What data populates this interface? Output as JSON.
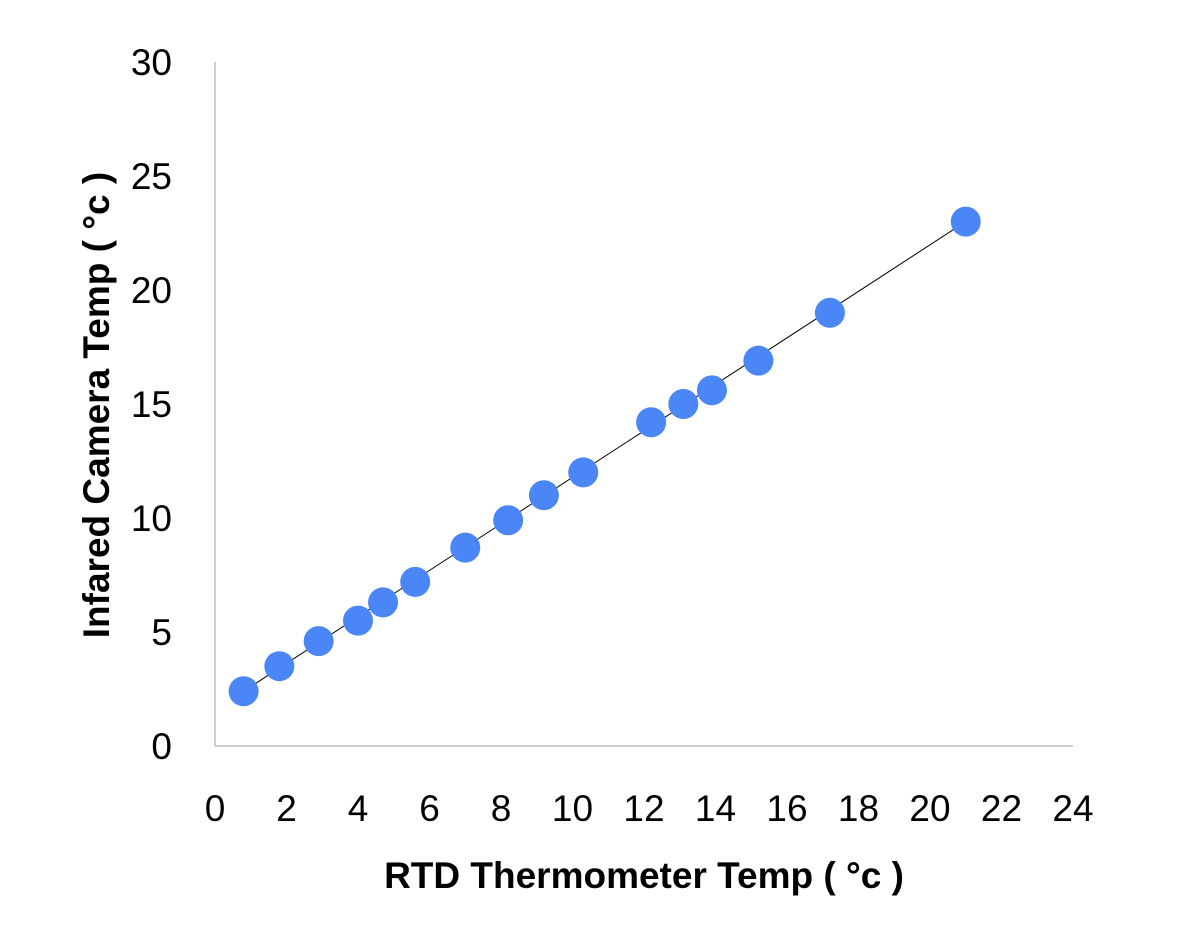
{
  "chart_data": {
    "type": "scatter",
    "title": "",
    "xlabel": "RTD Thermometer Temp ( °c  )",
    "ylabel": "Infared Camera  Temp ( °c )",
    "xlim": [
      0,
      24
    ],
    "ylim": [
      0,
      30
    ],
    "x_ticks": [
      "0",
      "2",
      "4",
      "6",
      "8",
      "10",
      "12",
      "14",
      "16",
      "18",
      "20",
      "22",
      "24"
    ],
    "y_ticks": [
      "0",
      "5",
      "10",
      "15",
      "20",
      "25",
      "30"
    ],
    "grid": false,
    "legend": "none",
    "marker_color": "#4a86f5",
    "trendline": {
      "from": [
        0.8,
        2.4
      ],
      "to": [
        21.0,
        23.0
      ]
    },
    "series": [
      {
        "points": [
          [
            0.8,
            2.4
          ],
          [
            1.8,
            3.5
          ],
          [
            2.9,
            4.6
          ],
          [
            4.0,
            5.5
          ],
          [
            4.7,
            6.3
          ],
          [
            5.6,
            7.2
          ],
          [
            7.0,
            8.7
          ],
          [
            8.2,
            9.9
          ],
          [
            9.2,
            11.0
          ],
          [
            10.3,
            12.0
          ],
          [
            12.2,
            14.2
          ],
          [
            13.1,
            15.0
          ],
          [
            13.9,
            15.6
          ],
          [
            15.2,
            16.9
          ],
          [
            17.2,
            19.0
          ],
          [
            21.0,
            23.0
          ]
        ]
      }
    ]
  }
}
